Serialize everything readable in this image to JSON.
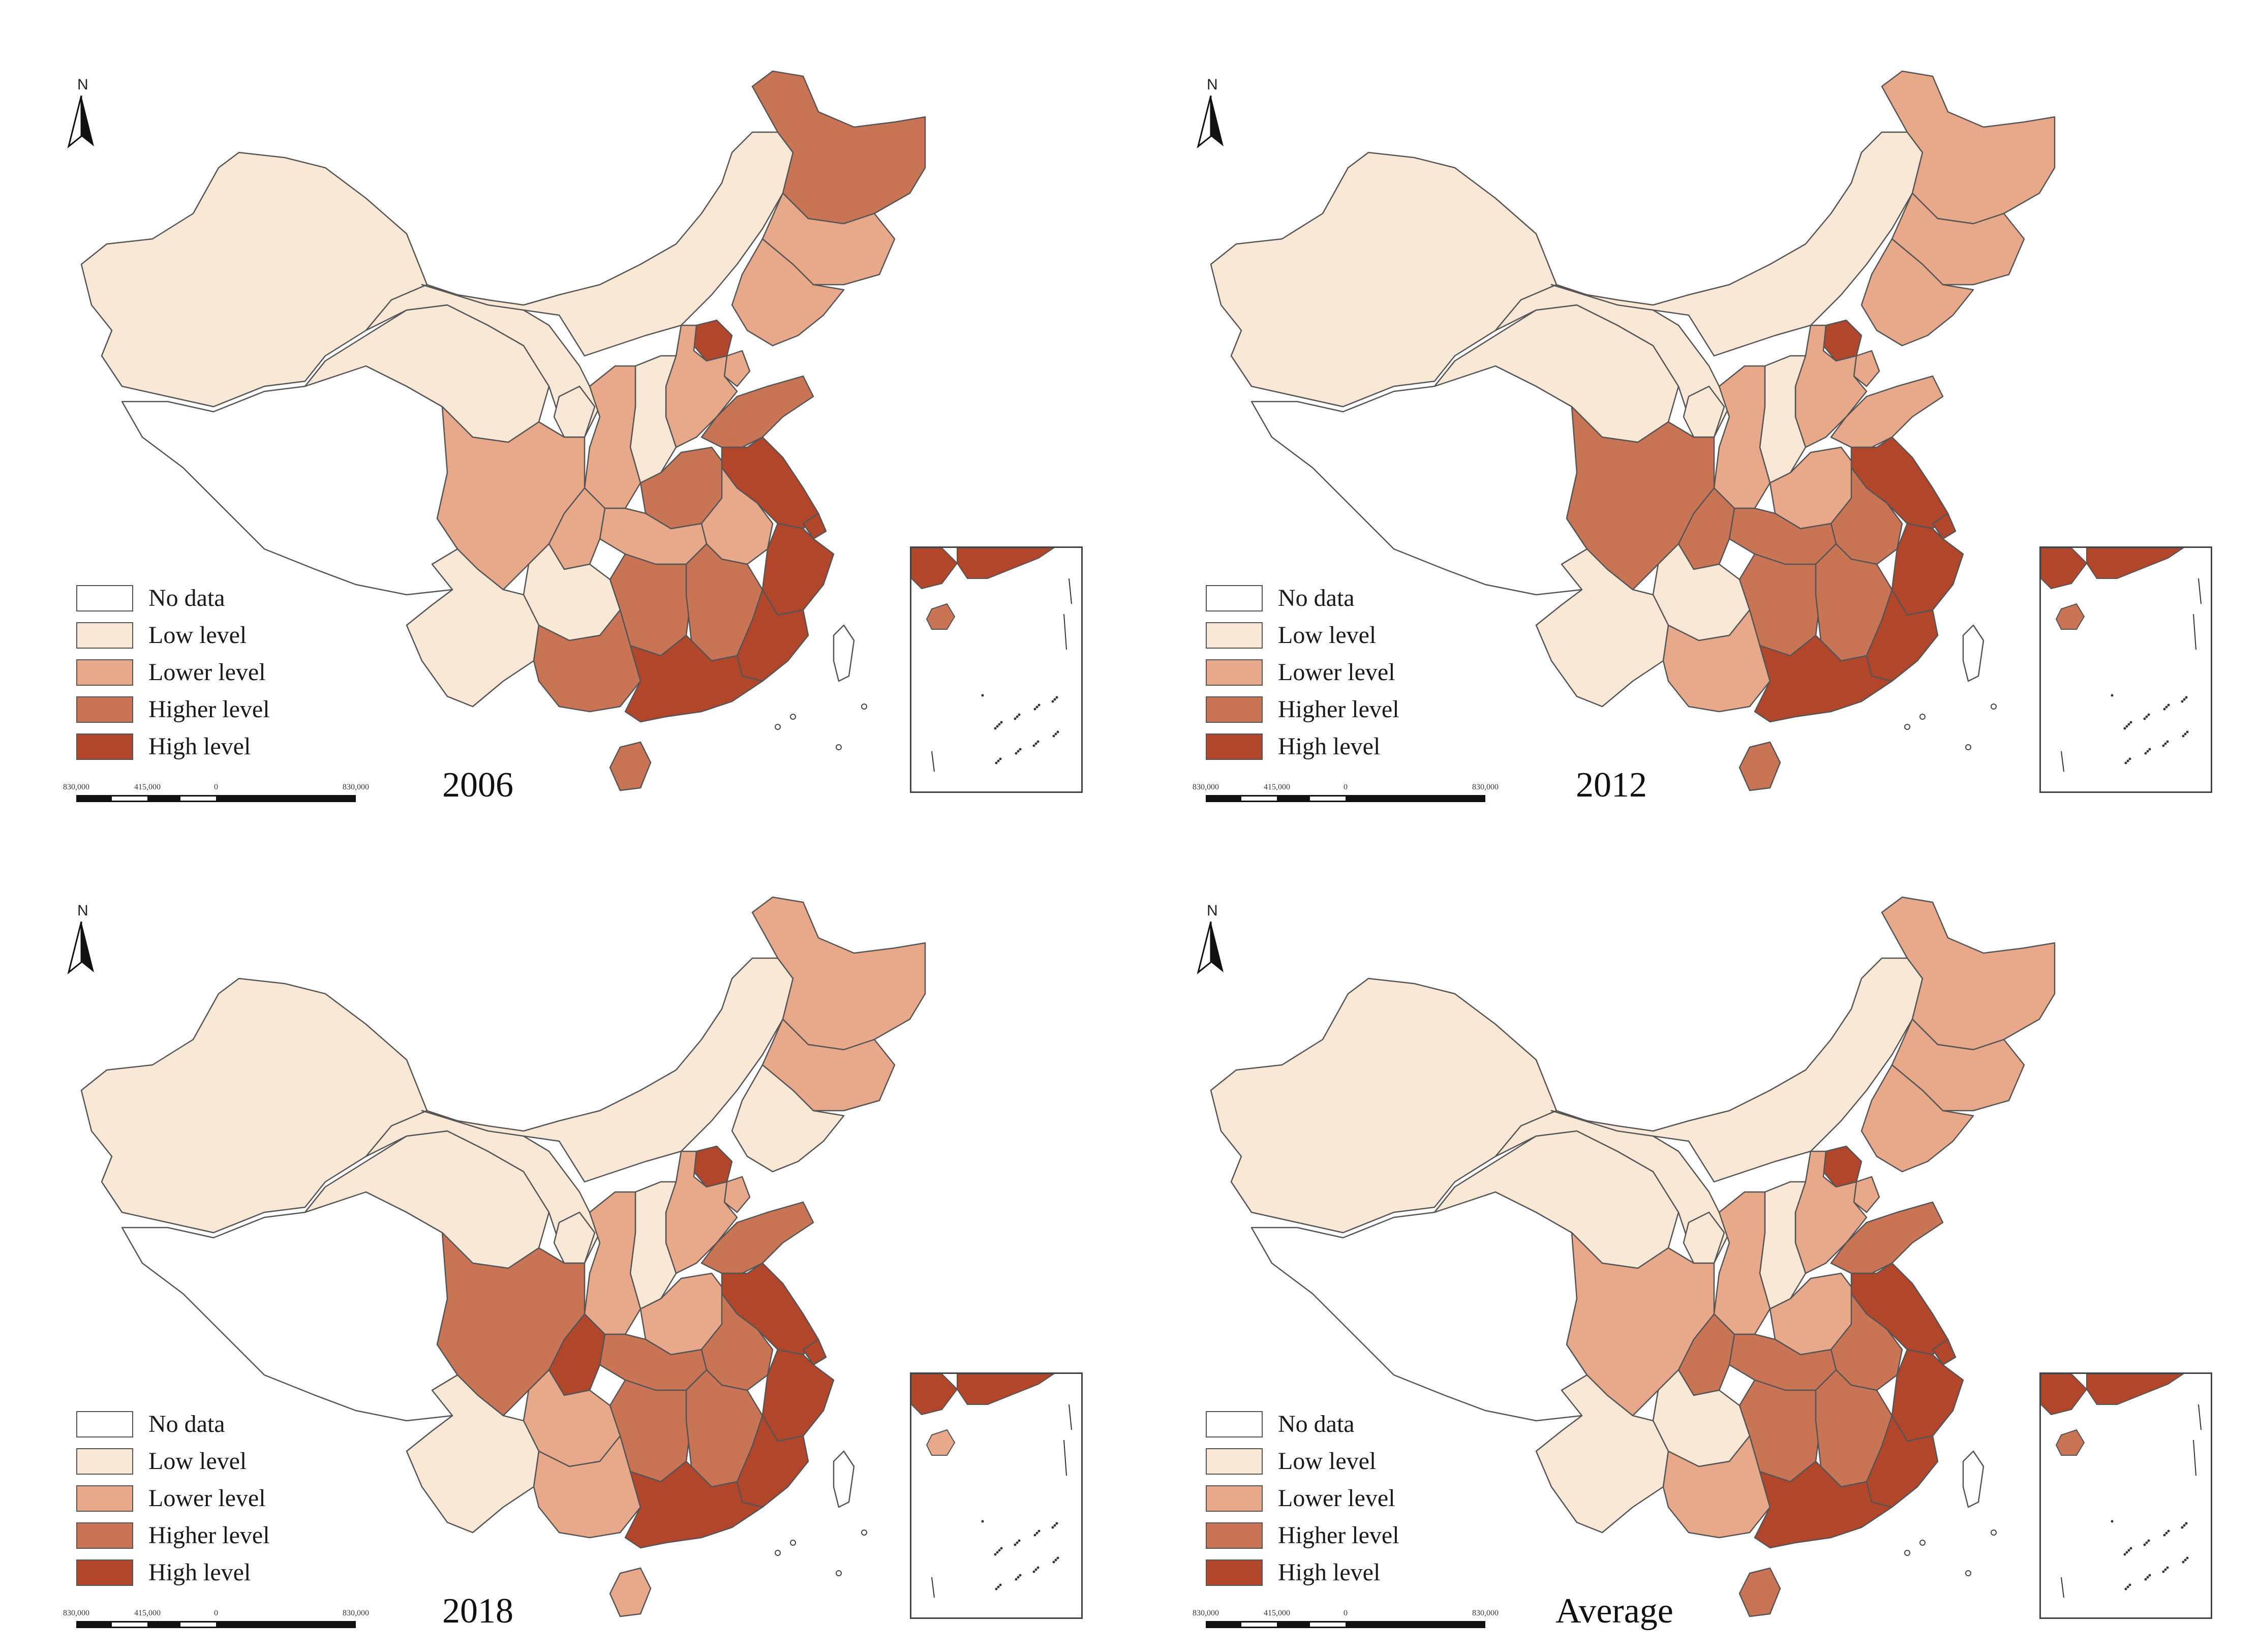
{
  "legend": {
    "items": [
      {
        "key": "nodata",
        "label": "No data",
        "color": "#ffffff"
      },
      {
        "key": "low",
        "label": "Low level",
        "color": "#fae8d6"
      },
      {
        "key": "lower",
        "label": "Lower level",
        "color": "#e7a98a"
      },
      {
        "key": "higher",
        "label": "Higher level",
        "color": "#c97455"
      },
      {
        "key": "high",
        "label": "High level",
        "color": "#b2462b"
      }
    ]
  },
  "north_label": "N",
  "scale_labels": [
    "830,000",
    "415,000",
    "0",
    "830,000"
  ],
  "panels": [
    {
      "year": "2006",
      "regions": {
        "xinjiang": "low",
        "tibet": "nodata",
        "qinghai": "low",
        "gansu": "low",
        "inner_mongolia": "low",
        "heilongjiang": "higher",
        "jilin": "lower",
        "liaoning": "lower",
        "beijing": "high",
        "tianjin": "lower",
        "hebei": "lower",
        "shanxi": "low",
        "shaanxi": "lower",
        "ningxia": "low",
        "henan": "higher",
        "shandong": "higher",
        "jiangsu": "high",
        "shanghai": "high",
        "anhui": "lower",
        "zhejiang": "high",
        "hubei": "lower",
        "hunan": "higher",
        "jiangxi": "higher",
        "fujian": "high",
        "guangdong": "high",
        "guangxi": "higher",
        "hainan": "higher",
        "sichuan": "lower",
        "chongqing": "lower",
        "guizhou": "low",
        "yunnan": "low",
        "taiwan": "nodata"
      }
    },
    {
      "year": "2012",
      "regions": {
        "xinjiang": "low",
        "tibet": "nodata",
        "qinghai": "low",
        "gansu": "low",
        "inner_mongolia": "low",
        "heilongjiang": "lower",
        "jilin": "lower",
        "liaoning": "lower",
        "beijing": "high",
        "tianjin": "lower",
        "hebei": "lower",
        "shanxi": "low",
        "shaanxi": "lower",
        "ningxia": "low",
        "henan": "lower",
        "shandong": "lower",
        "jiangsu": "high",
        "shanghai": "high",
        "anhui": "higher",
        "zhejiang": "high",
        "hubei": "higher",
        "hunan": "higher",
        "jiangxi": "higher",
        "fujian": "high",
        "guangdong": "high",
        "guangxi": "lower",
        "hainan": "higher",
        "sichuan": "higher",
        "chongqing": "higher",
        "guizhou": "low",
        "yunnan": "low",
        "taiwan": "nodata"
      }
    },
    {
      "year": "2018",
      "regions": {
        "xinjiang": "low",
        "tibet": "nodata",
        "qinghai": "low",
        "gansu": "low",
        "inner_mongolia": "low",
        "heilongjiang": "lower",
        "jilin": "lower",
        "liaoning": "low",
        "beijing": "high",
        "tianjin": "lower",
        "hebei": "lower",
        "shanxi": "low",
        "shaanxi": "lower",
        "ningxia": "low",
        "henan": "lower",
        "shandong": "higher",
        "jiangsu": "high",
        "shanghai": "high",
        "anhui": "higher",
        "zhejiang": "high",
        "hubei": "higher",
        "hunan": "higher",
        "jiangxi": "higher",
        "fujian": "high",
        "guangdong": "high",
        "guangxi": "lower",
        "hainan": "lower",
        "sichuan": "higher",
        "chongqing": "high",
        "guizhou": "lower",
        "yunnan": "low",
        "taiwan": "nodata"
      }
    },
    {
      "year": "Average",
      "regions": {
        "xinjiang": "low",
        "tibet": "nodata",
        "qinghai": "low",
        "gansu": "low",
        "inner_mongolia": "low",
        "heilongjiang": "lower",
        "jilin": "lower",
        "liaoning": "lower",
        "beijing": "high",
        "tianjin": "lower",
        "hebei": "lower",
        "shanxi": "low",
        "shaanxi": "lower",
        "ningxia": "low",
        "henan": "lower",
        "shandong": "higher",
        "jiangsu": "high",
        "shanghai": "high",
        "anhui": "higher",
        "zhejiang": "high",
        "hubei": "higher",
        "hunan": "higher",
        "jiangxi": "higher",
        "fujian": "high",
        "guangdong": "high",
        "guangxi": "lower",
        "hainan": "higher",
        "sichuan": "lower",
        "chongqing": "higher",
        "guizhou": "low",
        "yunnan": "low",
        "taiwan": "nodata"
      }
    }
  ]
}
